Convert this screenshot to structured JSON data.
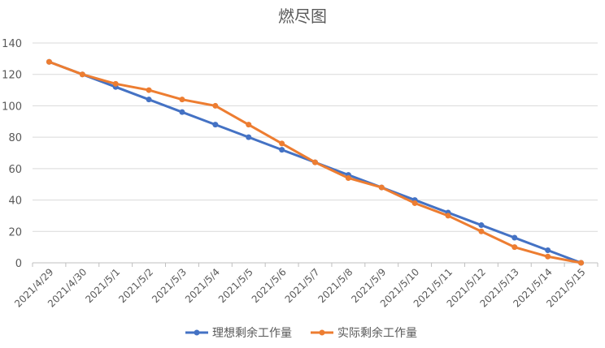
{
  "chart_data": {
    "type": "line",
    "title": "燃尽图",
    "xlabel": "",
    "ylabel": "",
    "categories": [
      "2021/4/29",
      "2021/4/30",
      "2021/5/1",
      "2021/5/2",
      "2021/5/3",
      "2021/5/4",
      "2021/5/5",
      "2021/5/6",
      "2021/5/7",
      "2021/5/8",
      "2021/5/9",
      "2021/5/10",
      "2021/5/11",
      "2021/5/12",
      "2021/5/13",
      "2021/5/14",
      "2021/5/15"
    ],
    "ylim": [
      0,
      140
    ],
    "yticks": [
      "0",
      "20",
      "40",
      "60",
      "80",
      "100",
      "120",
      "140"
    ],
    "grid": true,
    "legend_position": "bottom",
    "series": [
      {
        "name": "理想剩余工作量",
        "color": "#4472C4",
        "values": [
          128,
          120,
          112,
          104,
          96,
          88,
          80,
          72,
          64,
          56,
          48,
          40,
          32,
          24,
          16,
          8,
          0
        ]
      },
      {
        "name": "实际剩余工作量",
        "color": "#ED7D31",
        "values": [
          128,
          120,
          114,
          110,
          104,
          100,
          88,
          76,
          64,
          54,
          48,
          38,
          30,
          20,
          10,
          4,
          0
        ]
      }
    ]
  }
}
